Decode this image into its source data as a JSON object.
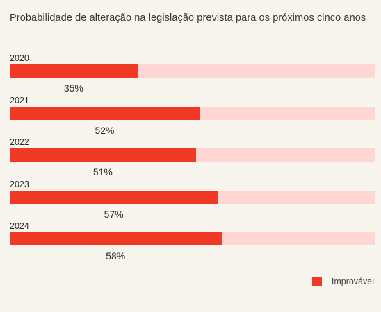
{
  "chart_data": {
    "type": "bar",
    "orientation": "horizontal",
    "title": "Probabilidade de alteração na legislação prevista para os próximos cinco anos",
    "categories": [
      "2020",
      "2021",
      "2022",
      "2023",
      "2024"
    ],
    "series": [
      {
        "name": "Improvável",
        "values": [
          35,
          52,
          51,
          57,
          58
        ],
        "color": "#f03a25"
      }
    ],
    "value_labels": [
      "35%",
      "52%",
      "51%",
      "57%",
      "58%"
    ],
    "xlim": [
      0,
      100
    ],
    "track_color": "#ffd6d2",
    "grid": false,
    "legend_position": "bottom-right"
  }
}
